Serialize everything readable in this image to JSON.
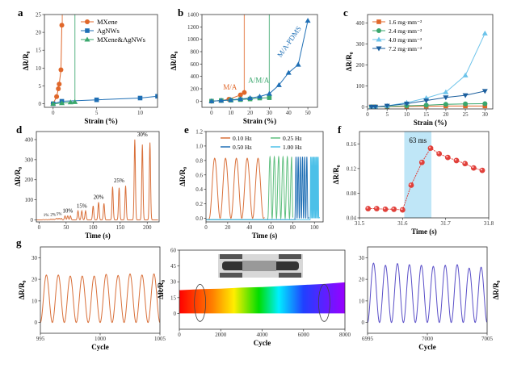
{
  "chart_data": [
    {
      "id": "a",
      "panel_label": "a",
      "type": "line",
      "xlabel": "Strain (%)",
      "ylabel": "ΔR/R₀",
      "xlim": [
        -1,
        12
      ],
      "ylim": [
        -1,
        25
      ],
      "xticks": [
        0,
        5,
        10
      ],
      "yticks": [
        0,
        5,
        10,
        15,
        20,
        25
      ],
      "legend": "top-right",
      "series": [
        {
          "name": "MXene",
          "color": "#e0672a",
          "marker": "circle",
          "x": [
            0,
            0.4,
            0.6,
            0.7,
            0.9,
            1.0
          ],
          "y": [
            0,
            2,
            4.2,
            5.5,
            9.5,
            22
          ],
          "break_line": 1.05
        },
        {
          "name": "AgNWs",
          "color": "#1f6fb5",
          "marker": "square",
          "x": [
            0,
            1,
            5,
            10,
            12
          ],
          "y": [
            0,
            0.7,
            1.1,
            1.6,
            2.1
          ]
        },
        {
          "name": "MXene&AgNWs",
          "color": "#3aa76d",
          "marker": "triangle",
          "x": [
            0,
            1,
            2,
            2.5
          ],
          "y": [
            0,
            0.2,
            0.4,
            0.5
          ],
          "break_line": 2.5
        }
      ]
    },
    {
      "id": "b",
      "panel_label": "b",
      "type": "line",
      "xlabel": "Strain (%)",
      "ylabel": "ΔR/R₀",
      "xlim": [
        -5,
        55
      ],
      "ylim": [
        -100,
        1400
      ],
      "xticks": [
        0,
        10,
        20,
        30,
        40,
        50
      ],
      "yticks": [
        0,
        200,
        400,
        600,
        800,
        1000,
        1200,
        1400
      ],
      "series": [
        {
          "name": "M/A",
          "color": "#e0672a",
          "marker": "circle",
          "x": [
            0,
            5,
            9,
            15,
            17
          ],
          "y": [
            0,
            10,
            30,
            100,
            140
          ],
          "break_line": 17
        },
        {
          "name": "A/M/A",
          "color": "#3aa76d",
          "marker": "square",
          "x": [
            0,
            5,
            10,
            15,
            20,
            25,
            30
          ],
          "y": [
            0,
            10,
            15,
            25,
            35,
            50,
            55
          ],
          "break_line": 30
        },
        {
          "name": "M/A-PDMS",
          "color": "#1f6fb5",
          "marker": "triangle",
          "x": [
            0,
            5,
            10,
            15,
            20,
            25,
            30,
            35,
            40,
            45,
            50
          ],
          "y": [
            0,
            10,
            20,
            35,
            50,
            75,
            120,
            260,
            460,
            590,
            1300
          ]
        }
      ]
    },
    {
      "id": "c",
      "panel_label": "c",
      "type": "line",
      "xlabel": "Strain (%)",
      "ylabel": "ΔR/R₀",
      "xlim": [
        0,
        32
      ],
      "ylim": [
        -10,
        440
      ],
      "xticks": [
        0,
        5,
        10,
        15,
        20,
        25,
        30
      ],
      "yticks": [
        0,
        100,
        200,
        300,
        400
      ],
      "legend": "top-left",
      "series": [
        {
          "name": "1.6 mg·mm⁻²",
          "color": "#e0672a",
          "marker": "square",
          "x": [
            1,
            2,
            5,
            10,
            15,
            20,
            25,
            30
          ],
          "y": [
            0,
            0,
            1,
            2,
            3,
            4,
            4,
            4
          ]
        },
        {
          "name": "2.4 mg·mm⁻²",
          "color": "#3aa76d",
          "marker": "circle",
          "x": [
            1,
            2,
            5,
            10,
            15,
            20,
            25,
            30
          ],
          "y": [
            0,
            0,
            2,
            5,
            8,
            12,
            14,
            15
          ]
        },
        {
          "name": "4.0 mg·mm⁻²",
          "color": "#6cc3ea",
          "marker": "triangle",
          "x": [
            1,
            2,
            5,
            10,
            15,
            20,
            25,
            30
          ],
          "y": [
            0,
            0,
            5,
            20,
            42,
            70,
            150,
            350
          ]
        },
        {
          "name": "7.2 mg·mm⁻²",
          "color": "#1c5f9e",
          "marker": "triangle-down",
          "x": [
            1,
            2,
            5,
            10,
            15,
            20,
            25,
            30
          ],
          "y": [
            0,
            0,
            5,
            15,
            30,
            45,
            55,
            75
          ]
        }
      ]
    },
    {
      "id": "d",
      "panel_label": "d",
      "type": "line",
      "xlabel": "Time (s)",
      "ylabel": "ΔR/R₀",
      "xlim": [
        -5,
        222
      ],
      "ylim": [
        -10,
        440
      ],
      "xticks": [
        0,
        50,
        100,
        150,
        200
      ],
      "yticks": [
        0,
        100,
        200,
        300,
        400
      ],
      "color": "#d9703a",
      "groups": [
        {
          "label": "1%",
          "times": [
            8,
            13,
            18
          ],
          "peaks": [
            2,
            2,
            2
          ]
        },
        {
          "label": "2%",
          "times": [
            22,
            26,
            30
          ],
          "peaks": [
            4,
            4,
            4
          ]
        },
        {
          "label": "5%",
          "times": [
            33,
            37,
            41
          ],
          "peaks": [
            8,
            8,
            8
          ]
        },
        {
          "label": "10%",
          "times": [
            48,
            53,
            58
          ],
          "peaks": [
            20,
            20,
            20
          ]
        },
        {
          "label": "15%",
          "times": [
            72,
            79,
            86
          ],
          "peaks": [
            45,
            45,
            45
          ]
        },
        {
          "label": "20%",
          "times": [
            100,
            110,
            120
          ],
          "peaks": [
            70,
            88,
            82
          ]
        },
        {
          "label": "25%",
          "times": [
            136,
            148,
            160
          ],
          "peaks": [
            165,
            160,
            170
          ]
        },
        {
          "label": "30%",
          "times": [
            177,
            191,
            205
          ],
          "peaks": [
            400,
            375,
            385
          ]
        }
      ]
    },
    {
      "id": "e",
      "panel_label": "e",
      "type": "line",
      "xlabel": "Time (s)",
      "ylabel": "ΔR/R₀",
      "xlim": [
        0,
        108
      ],
      "ylim": [
        -0.05,
        1.2
      ],
      "xticks": [
        0,
        20,
        40,
        60,
        80,
        100
      ],
      "yticks": [
        0.0,
        0.2,
        0.4,
        0.6,
        0.8,
        1.0,
        1.2
      ],
      "legend": "top",
      "series": [
        {
          "name": "0.10 Hz",
          "color": "#d9703a",
          "freq": 0.1,
          "start": 3,
          "end": 53,
          "amplitude": 0.83
        },
        {
          "name": "0.25 Hz",
          "color": "#5fbf7f",
          "freq": 0.25,
          "start": 57,
          "end": 79,
          "amplitude": 0.85
        },
        {
          "name": "0.50 Hz",
          "color": "#1f6fb5",
          "freq": 0.5,
          "start": 82,
          "end": 94,
          "amplitude": 0.85
        },
        {
          "name": "1.00 Hz",
          "color": "#4cc0e8",
          "freq": 1.0,
          "start": 96,
          "end": 104,
          "amplitude": 0.85
        }
      ]
    },
    {
      "id": "f",
      "panel_label": "f",
      "type": "line",
      "xlabel": "Time (s)",
      "ylabel": "ΔR/R₀",
      "xlim": [
        31.5,
        31.8
      ],
      "ylim": [
        0.04,
        0.18
      ],
      "xticks": [
        31.5,
        31.6,
        31.7,
        31.8
      ],
      "yticks": [
        0.04,
        0.08,
        0.12,
        0.16
      ],
      "color": "#e0403a",
      "x": [
        31.52,
        31.54,
        31.56,
        31.58,
        31.6,
        31.62,
        31.645,
        31.665,
        31.685,
        31.705,
        31.725,
        31.745,
        31.765,
        31.785
      ],
      "y": [
        0.055,
        0.055,
        0.054,
        0.054,
        0.053,
        0.093,
        0.13,
        0.153,
        0.144,
        0.138,
        0.133,
        0.128,
        0.121,
        0.117
      ],
      "highlight": {
        "from": 31.604,
        "to": 31.667,
        "label": "63 ms",
        "color": "#bfe6f7"
      }
    },
    {
      "id": "g1",
      "panel_label": "g",
      "type": "line",
      "xlabel": "Cycle",
      "ylabel": "ΔR/R₀",
      "xlim": [
        995,
        1005
      ],
      "ylim": [
        -5,
        35
      ],
      "xticks": [
        995,
        1000,
        1005
      ],
      "yticks": [
        0,
        10,
        20,
        30
      ],
      "color": "#d9703a",
      "peaks": [
        22,
        22,
        21.5,
        21.5,
        21.5,
        22.3,
        21.8,
        22.5,
        22,
        22.5
      ]
    },
    {
      "id": "g2",
      "type": "area",
      "xlabel": "Cycle",
      "ylabel": "ΔR/R₀",
      "xlim": [
        0,
        8000
      ],
      "ylim": [
        -15,
        60
      ],
      "xticks": [
        0,
        2000,
        4000,
        6000,
        8000
      ],
      "yticks": [
        0,
        15,
        30,
        45,
        60
      ],
      "envelope_x": [
        0,
        1000,
        2000,
        3000,
        4000,
        5000,
        6000,
        7000,
        8000
      ],
      "envelope_y": [
        22,
        23,
        23.5,
        24.5,
        25,
        26,
        27,
        28,
        29.5
      ],
      "highlight_cycles": [
        1000,
        7000
      ],
      "fill": "rainbow"
    },
    {
      "id": "g3",
      "type": "line",
      "xlabel": "Cycle",
      "ylabel": "ΔR/R₀",
      "xlim": [
        6995,
        7005
      ],
      "ylim": [
        -5,
        35
      ],
      "xticks": [
        6995,
        7000,
        7005
      ],
      "yticks": [
        0,
        10,
        20,
        30
      ],
      "color": "#5a4fc8",
      "peaks": [
        27.5,
        26.5,
        27.3,
        26.8,
        26.5,
        26,
        26.5,
        26.8,
        25.2,
        25.6
      ]
    }
  ]
}
